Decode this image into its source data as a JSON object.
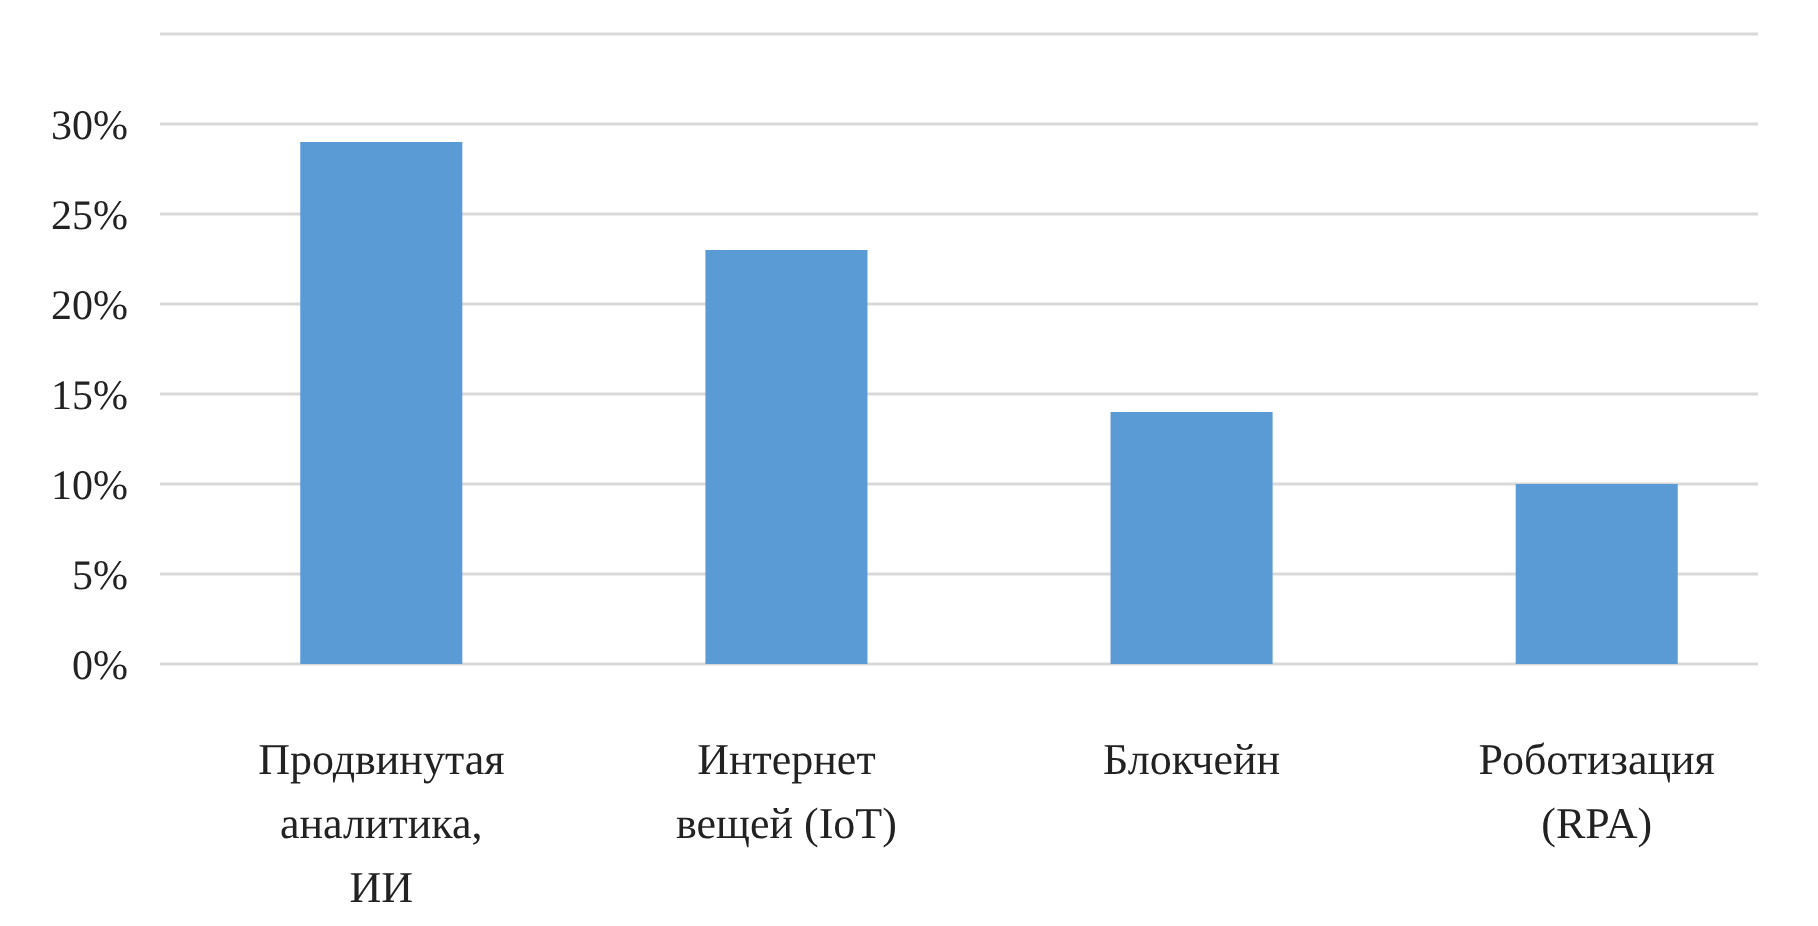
{
  "chart_data": {
    "type": "bar",
    "categories": [
      "Продвинутая аналитика, ИИ",
      "Интернет вещей (IoT)",
      "Блокчейн",
      "Роботизация (RPA)"
    ],
    "values": [
      29,
      23,
      14,
      10
    ],
    "color": "#5b9bd5",
    "ylim": [
      0,
      35
    ],
    "yticks": [
      {
        "value": 0,
        "label": "0%"
      },
      {
        "value": 5,
        "label": "5%"
      },
      {
        "value": 10,
        "label": "10%"
      },
      {
        "value": 15,
        "label": "15%"
      },
      {
        "value": 20,
        "label": "20%"
      },
      {
        "value": 25,
        "label": "25%"
      },
      {
        "value": 30,
        "label": "30%"
      },
      {
        "value": 35,
        "label": null
      }
    ],
    "grid": "y"
  }
}
